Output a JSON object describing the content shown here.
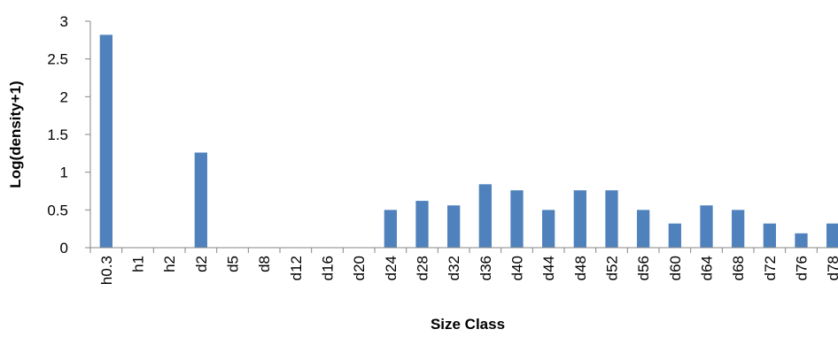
{
  "chart_data": {
    "type": "bar",
    "xlabel": "Size Class",
    "ylabel": "Log(density+1)",
    "ylim": [
      0,
      3
    ],
    "yticks": [
      0,
      0.5,
      1,
      1.5,
      2,
      2.5,
      3
    ],
    "ytick_labels": [
      "0",
      "0.5",
      "1",
      "1.5",
      "2",
      "2.5",
      "3"
    ],
    "grid": false,
    "legend": "none",
    "bar_color": "#4f81bd",
    "categories": [
      "h0.3",
      "h1",
      "h2",
      "d2",
      "d5",
      "d8",
      "d12",
      "d16",
      "d20",
      "d24",
      "d28",
      "d32",
      "d36",
      "d40",
      "d44",
      "d48",
      "d52",
      "d56",
      "d60",
      "d64",
      "d68",
      "d72",
      "d76",
      "d78"
    ],
    "values": [
      2.82,
      0,
      0,
      1.26,
      0,
      0,
      0,
      0,
      0,
      0.5,
      0.62,
      0.56,
      0.84,
      0.76,
      0.5,
      0.76,
      0.76,
      0.5,
      0.32,
      0.56,
      0.5,
      0.32,
      0.19,
      0.32
    ]
  }
}
